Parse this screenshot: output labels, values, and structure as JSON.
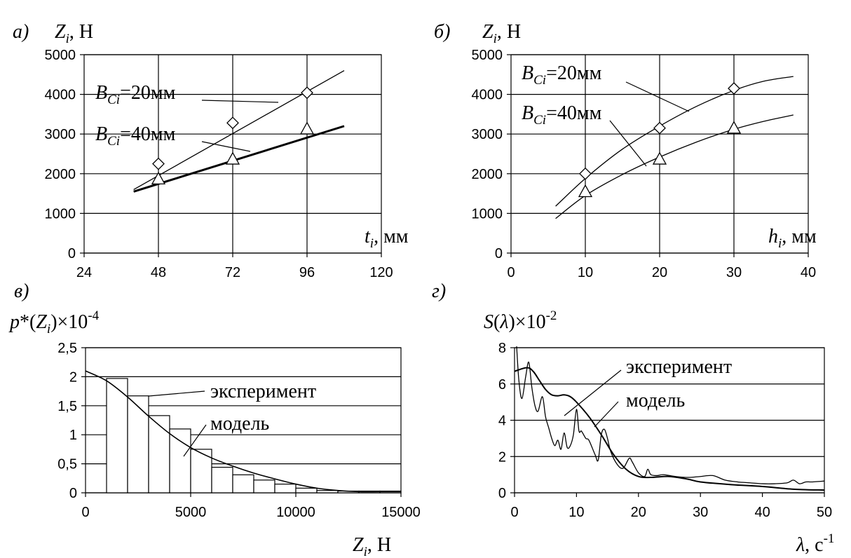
{
  "chart_data": [
    {
      "panel": "а)",
      "type": "scatter",
      "ylabel": "Z_i, Н",
      "xlabel": "t_i, мм",
      "xlim": [
        24,
        120
      ],
      "ylim": [
        0,
        5000
      ],
      "x_ticks": [
        "24",
        "48",
        "72",
        "96",
        "120"
      ],
      "y_ticks": [
        "0",
        "1000",
        "2000",
        "3000",
        "4000",
        "5000"
      ],
      "grid": true,
      "series": [
        {
          "name": "B_Ci=20мм",
          "marker": "diamond",
          "points": [
            [
              48,
              2250
            ],
            [
              72,
              3280
            ],
            [
              96,
              4040
            ]
          ],
          "fit": [
            [
              40,
              1600
            ],
            [
              108,
              4600
            ]
          ]
        },
        {
          "name": "B_Ci=40мм",
          "marker": "triangle",
          "points": [
            [
              48,
              1870
            ],
            [
              72,
              2370
            ],
            [
              96,
              3130
            ]
          ],
          "fit": [
            [
              40,
              1550
            ],
            [
              108,
              3200
            ]
          ]
        }
      ],
      "annotations": [
        {
          "base": "B",
          "sub": "Ci",
          "value": "=20мм"
        },
        {
          "base": "B",
          "sub": "Ci",
          "value": "=40мм"
        }
      ]
    },
    {
      "panel": "б)",
      "type": "scatter",
      "ylabel": "Z_i, Н",
      "xlabel": "h_i, мм",
      "xlim": [
        0,
        40
      ],
      "ylim": [
        0,
        5000
      ],
      "x_ticks": [
        "0",
        "10",
        "20",
        "30",
        "40"
      ],
      "y_ticks": [
        "0",
        "1000",
        "2000",
        "3000",
        "4000",
        "5000"
      ],
      "grid": true,
      "series": [
        {
          "name": "B_Ci=20мм",
          "marker": "diamond",
          "points": [
            [
              10,
              2000
            ],
            [
              20,
              3150
            ],
            [
              30,
              4150
            ]
          ],
          "fit": [
            [
              6,
              1180
            ],
            [
              10,
              1880
            ],
            [
              15,
              2620
            ],
            [
              20,
              3200
            ],
            [
              25,
              3700
            ],
            [
              30,
              4100
            ],
            [
              34,
              4330
            ],
            [
              38,
              4450
            ]
          ]
        },
        {
          "name": "B_Ci=40мм",
          "marker": "triangle",
          "points": [
            [
              10,
              1550
            ],
            [
              20,
              2370
            ],
            [
              30,
              3150
            ]
          ],
          "fit": [
            [
              6,
              870
            ],
            [
              10,
              1450
            ],
            [
              15,
              1980
            ],
            [
              20,
              2420
            ],
            [
              25,
              2800
            ],
            [
              30,
              3120
            ],
            [
              34,
              3320
            ],
            [
              38,
              3480
            ]
          ]
        }
      ],
      "annotations": [
        {
          "base": "B",
          "sub": "Ci",
          "value": "=20мм"
        },
        {
          "base": "B",
          "sub": "Ci",
          "value": "=40мм"
        }
      ]
    },
    {
      "panel": "в)",
      "type": "bar",
      "ylabel": "p*(Z_i)×10^-4",
      "xlabel": "Z_i, Н",
      "xlim": [
        0,
        15000
      ],
      "ylim": [
        0,
        2.5
      ],
      "x_ticks": [
        "0",
        "5000",
        "10000",
        "15000"
      ],
      "y_ticks": [
        "0",
        "0,5",
        "1",
        "1,5",
        "2",
        "2,5"
      ],
      "grid": true,
      "bin_width": 1000,
      "series": [
        {
          "name": "эксперимент",
          "type": "bar",
          "bin_starts": [
            1000,
            2000,
            3000,
            4000,
            5000,
            6000,
            7000,
            8000,
            9000,
            10000,
            11000,
            12000,
            13000,
            14000
          ],
          "values": [
            1.97,
            1.67,
            1.33,
            1.1,
            0.75,
            0.44,
            0.31,
            0.22,
            0.15,
            0.08,
            0.04,
            0.03,
            0.03,
            0.03
          ]
        },
        {
          "name": "модель",
          "type": "line",
          "x": [
            0,
            1000,
            2000,
            3000,
            4000,
            5000,
            6000,
            7000,
            8000,
            9000,
            10000,
            11000,
            12000,
            13000,
            14000,
            15000
          ],
          "values": [
            2.1,
            1.93,
            1.65,
            1.32,
            1.02,
            0.78,
            0.6,
            0.46,
            0.34,
            0.24,
            0.15,
            0.08,
            0.04,
            0.02,
            0.02,
            0.02
          ]
        }
      ]
    },
    {
      "panel": "г)",
      "type": "line",
      "ylabel": "S(λ)×10^-2",
      "xlabel": "λ, с^-1",
      "xlim": [
        0,
        50
      ],
      "ylim": [
        0,
        8
      ],
      "x_ticks": [
        "0",
        "10",
        "20",
        "30",
        "40",
        "50"
      ],
      "y_ticks": [
        "0",
        "2",
        "4",
        "6",
        "8"
      ],
      "grid": true,
      "series": [
        {
          "name": "эксперимент",
          "x": [
            0.3,
            0.7,
            1.2,
            1.8,
            2.3,
            2.8,
            3.3,
            3.8,
            4.5,
            5,
            5.5,
            6,
            6.5,
            7,
            7.5,
            8,
            8.5,
            9,
            9.5,
            10,
            10.4,
            10.8,
            11.5,
            12,
            13,
            13.5,
            14,
            14.5,
            15,
            15.5,
            16.5,
            17.5,
            18.5,
            19,
            20,
            21,
            21.5,
            22,
            23,
            24,
            26,
            28,
            30,
            32,
            34,
            36,
            38,
            40,
            42,
            44,
            45,
            46,
            47,
            48,
            50
          ],
          "values": [
            8.3,
            6.2,
            5.2,
            6.4,
            7.2,
            5.8,
            4.8,
            4.5,
            5.3,
            4.2,
            3.6,
            3.0,
            2.6,
            2.9,
            2.4,
            3.3,
            2.5,
            2.6,
            3.2,
            4.6,
            3.4,
            3.4,
            3.0,
            2.9,
            2.1,
            1.8,
            3.2,
            3.5,
            3.0,
            2.3,
            1.6,
            1.35,
            1.9,
            1.7,
            1.1,
            0.9,
            1.3,
            1.0,
            0.95,
            1.0,
            0.9,
            0.85,
            0.9,
            0.95,
            0.7,
            0.6,
            0.55,
            0.5,
            0.5,
            0.55,
            0.7,
            0.5,
            0.6,
            0.6,
            0.65
          ]
        },
        {
          "name": "модель",
          "x": [
            0,
            2,
            3,
            4,
            5,
            6,
            7,
            8,
            9,
            10,
            12,
            14,
            16,
            18,
            20,
            22,
            25,
            28,
            30,
            35,
            40,
            45,
            50
          ],
          "values": [
            6.7,
            6.9,
            6.7,
            6.2,
            5.7,
            5.4,
            5.35,
            5.4,
            5.3,
            5.0,
            4.2,
            3.2,
            2.1,
            1.3,
            0.9,
            0.85,
            0.9,
            0.75,
            0.6,
            0.45,
            0.35,
            0.2,
            0.15
          ]
        }
      ]
    }
  ]
}
